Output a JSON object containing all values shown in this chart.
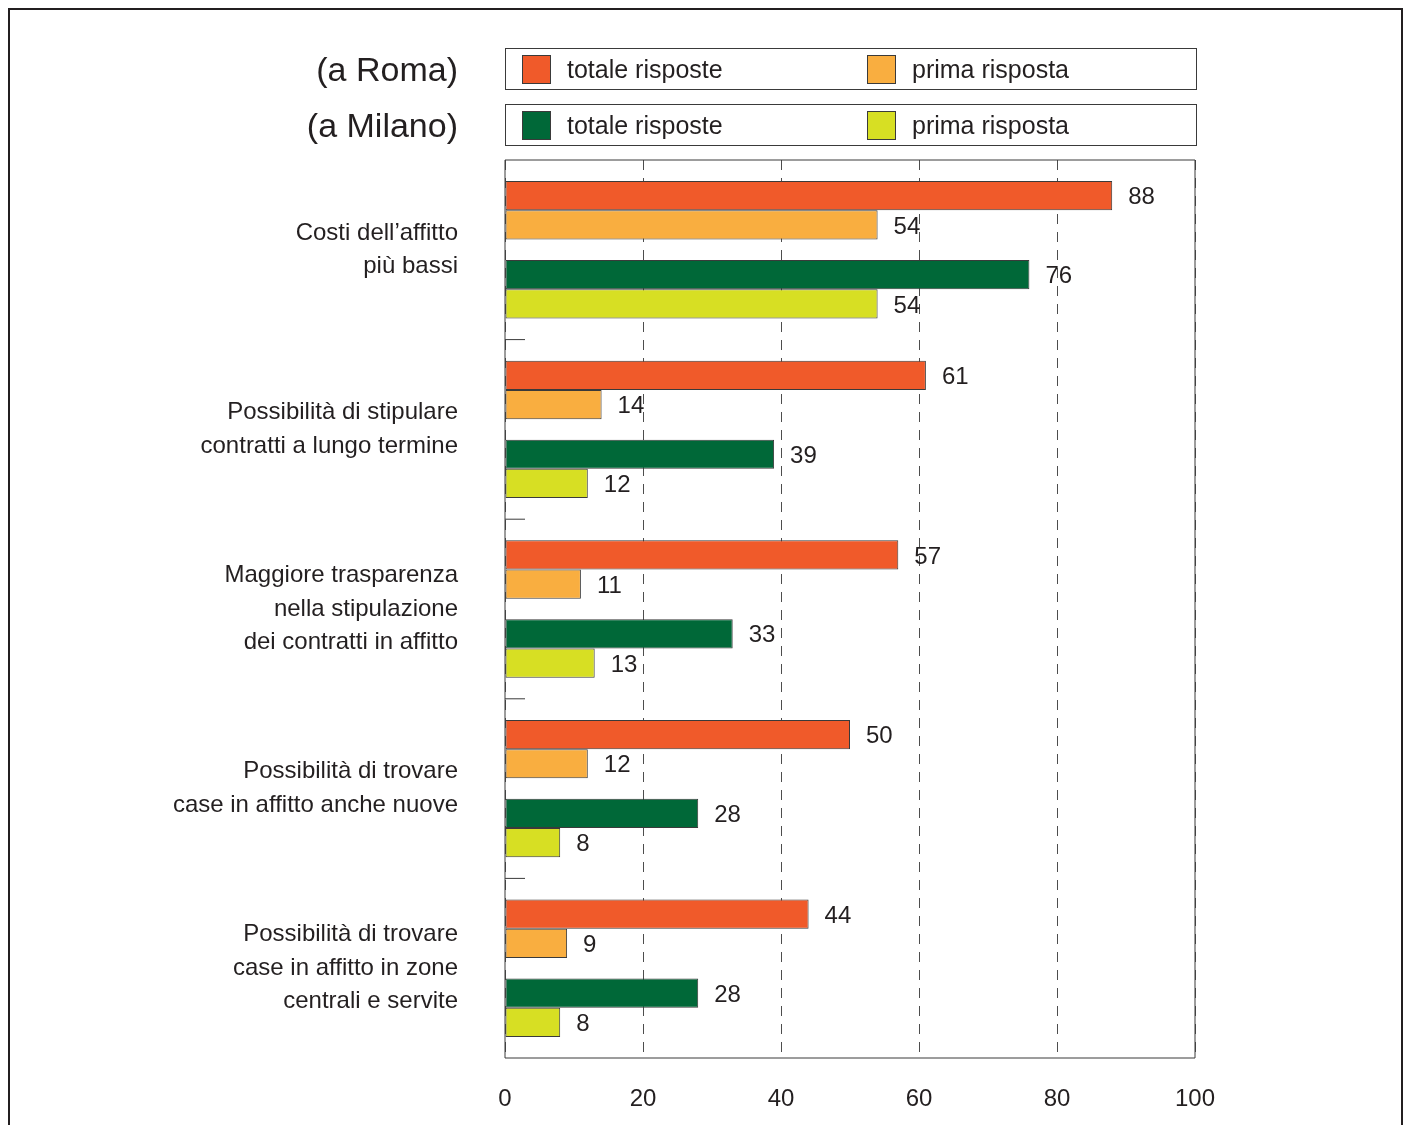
{
  "chart_data": {
    "type": "bar",
    "orientation": "horizontal",
    "categories": [
      "Costi dell’affitto\npiù bassi",
      "Possibilità di stipulare\ncontratti a lungo termine",
      "Maggiore trasparenza\nnella stipulazione\ndei contratti in affitto",
      "Possibilità di trovare\ncase in affitto anche nuove",
      "Possibilità di trovare\ncase in affitto in zone\ncentrali e servite"
    ],
    "series": [
      {
        "name": "totale risposte",
        "color": "#f05a2a",
        "values": [
          88,
          61,
          57,
          50,
          44
        ]
      },
      {
        "name": "prima risposta",
        "color": "#f9ae40",
        "values": [
          54,
          14,
          11,
          12,
          9
        ]
      },
      {
        "name": "totale risposte",
        "color": "#006838",
        "values": [
          76,
          39,
          33,
          28,
          28
        ]
      },
      {
        "name": "prima risposta",
        "color": "#d7df23",
        "values": [
          54,
          12,
          13,
          8,
          8
        ]
      }
    ],
    "xlim": [
      0,
      100
    ],
    "xticks": [
      0,
      20,
      40,
      60,
      80,
      100
    ],
    "grid": "x",
    "legend": "top",
    "data_labels": true,
    "annotations": [
      "(a Roma)",
      "(a Milano)"
    ]
  }
}
